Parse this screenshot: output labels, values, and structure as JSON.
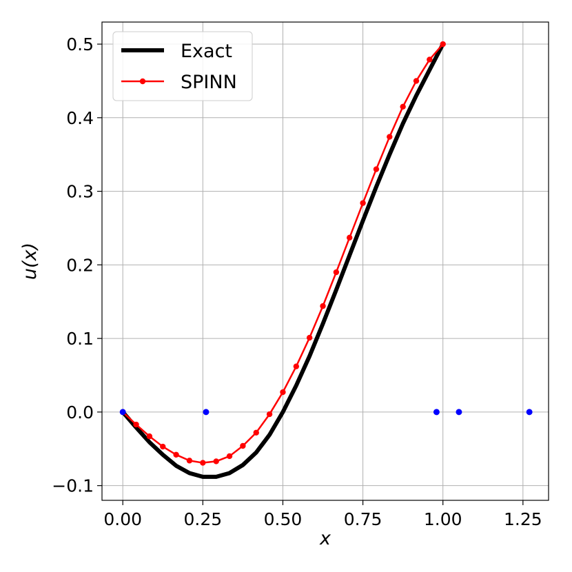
{
  "chart_data": {
    "type": "line",
    "xlabel": "x",
    "ylabel": "u(x)",
    "xlim": [
      -0.065,
      1.33
    ],
    "ylim": [
      -0.12,
      0.53
    ],
    "xticks": [
      0.0,
      0.25,
      0.5,
      0.75,
      1.0,
      1.25
    ],
    "xtick_labels": [
      "0.00",
      "0.25",
      "0.50",
      "0.75",
      "1.00",
      "1.25"
    ],
    "yticks": [
      -0.1,
      0.0,
      0.1,
      0.2,
      0.3,
      0.4,
      0.5
    ],
    "ytick_labels": [
      "−0.1",
      "0.0",
      "0.1",
      "0.2",
      "0.3",
      "0.4",
      "0.5"
    ],
    "grid": true,
    "legend_position": "top-left",
    "series": [
      {
        "name": "Exact",
        "color": "#000000",
        "style": "thick-line",
        "x": [
          0.0,
          0.0417,
          0.0833,
          0.125,
          0.1667,
          0.2083,
          0.25,
          0.2917,
          0.3333,
          0.375,
          0.4167,
          0.4583,
          0.5,
          0.5417,
          0.5833,
          0.625,
          0.6667,
          0.7083,
          0.75,
          0.7917,
          0.8333,
          0.875,
          0.9167,
          0.9583,
          1.0
        ],
        "y": [
          0.0,
          -0.021,
          -0.041,
          -0.058,
          -0.073,
          -0.083,
          -0.088,
          -0.088,
          -0.083,
          -0.072,
          -0.055,
          -0.031,
          0.0,
          0.036,
          0.076,
          0.12,
          0.166,
          0.213,
          0.26,
          0.306,
          0.35,
          0.392,
          0.43,
          0.465,
          0.5
        ]
      },
      {
        "name": "SPINN",
        "color": "#ff0000",
        "style": "line-marker",
        "x": [
          0.0,
          0.0417,
          0.0833,
          0.125,
          0.1667,
          0.2083,
          0.25,
          0.2917,
          0.3333,
          0.375,
          0.4167,
          0.4583,
          0.5,
          0.5417,
          0.5833,
          0.625,
          0.6667,
          0.7083,
          0.75,
          0.7917,
          0.8333,
          0.875,
          0.9167,
          0.9583,
          1.0
        ],
        "y": [
          0.0,
          -0.017,
          -0.033,
          -0.047,
          -0.058,
          -0.066,
          -0.069,
          -0.067,
          -0.06,
          -0.046,
          -0.028,
          -0.003,
          0.027,
          0.062,
          0.101,
          0.144,
          0.19,
          0.237,
          0.284,
          0.33,
          0.374,
          0.415,
          0.45,
          0.479,
          0.5
        ]
      },
      {
        "color": "#0000ff",
        "style": "markers-only",
        "x": [
          0.0,
          0.26,
          0.98,
          1.05,
          1.27
        ],
        "y": [
          0.0,
          0.0,
          0.0,
          0.0,
          0.0
        ]
      }
    ]
  }
}
